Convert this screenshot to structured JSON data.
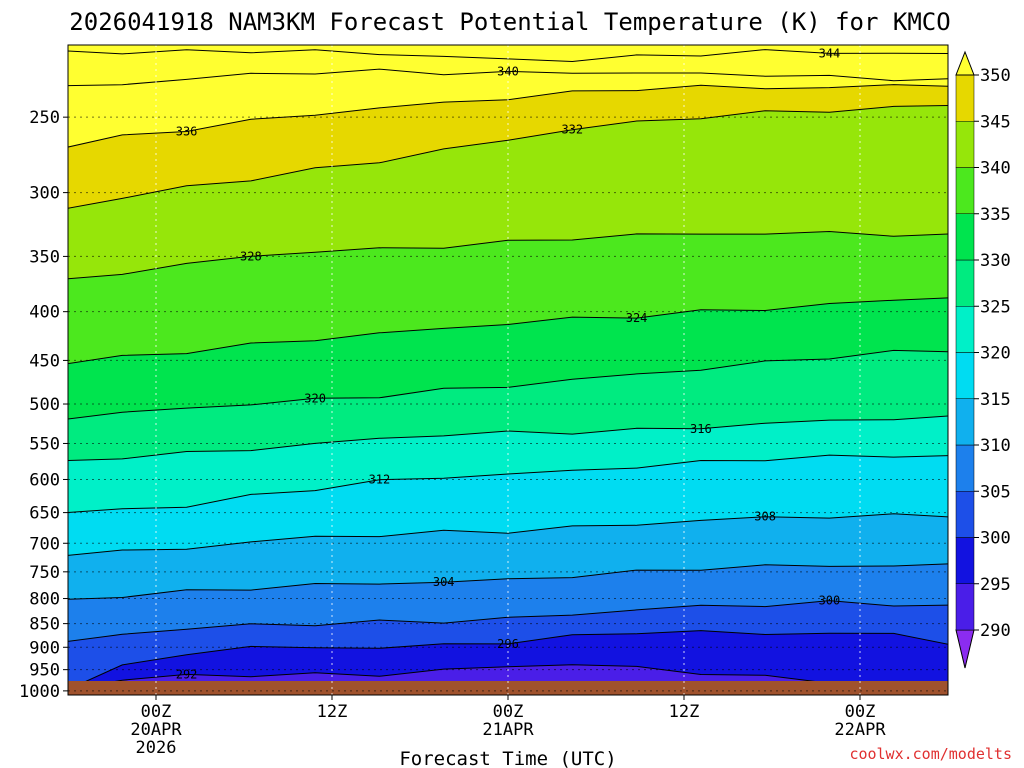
{
  "chart_data": {
    "type": "heatmap",
    "title": "2026041918 NAM3KM Forecast Potential Temperature (K) for KMCO",
    "xlabel": "Forecast Time (UTC)",
    "credit": "coolwx.com/modelts",
    "x_ticks": [
      {
        "hours": 6,
        "lines": [
          "00Z",
          "20APR",
          "2026"
        ]
      },
      {
        "hours": 18,
        "lines": [
          "12Z"
        ]
      },
      {
        "hours": 30,
        "lines": [
          "00Z",
          "21APR"
        ]
      },
      {
        "hours": 42,
        "lines": [
          "12Z"
        ]
      },
      {
        "hours": 54,
        "lines": [
          "00Z",
          "22APR"
        ]
      }
    ],
    "xlim_hours": [
      0,
      60
    ],
    "y_axis": {
      "units": "hPa",
      "scale": "log",
      "ylim": [
        1000,
        210
      ],
      "ticks": [
        "250",
        "300",
        "350",
        "400",
        "450",
        "500",
        "550",
        "600",
        "650",
        "700",
        "750",
        "800",
        "850",
        "900",
        "950",
        "1000"
      ]
    },
    "colorbar": {
      "levels": [
        "290",
        "295",
        "300",
        "305",
        "310",
        "315",
        "320",
        "325",
        "330",
        "335",
        "340",
        "345",
        "350"
      ],
      "colors": [
        "#8b2cf0",
        "#4a1ee8",
        "#1212e0",
        "#1d4fe8",
        "#1d80ec",
        "#10b0ee",
        "#00dcf2",
        "#00f0c8",
        "#00eb80",
        "#00e44e",
        "#4ce81e",
        "#96e60a",
        "#e6d800",
        "#ffff30"
      ]
    },
    "contours": [
      {
        "label": "292",
        "p": [
          1000,
          975,
          968,
          962,
          960,
          958,
          950,
          945,
          940,
          948,
          955,
          965,
          975,
          985,
          1000
        ]
      },
      {
        "label": "296",
        "p": [
          1000,
          945,
          915,
          903,
          900,
          898,
          893,
          888,
          880,
          870,
          868,
          870,
          866,
          872,
          895
        ]
      },
      {
        "label": "300",
        "p": [
          890,
          870,
          862,
          856,
          852,
          846,
          842,
          838,
          832,
          824,
          818,
          812,
          806,
          808,
          815
        ]
      },
      {
        "label": "304",
        "p": [
          802,
          792,
          787,
          782,
          777,
          772,
          767,
          762,
          756,
          752,
          746,
          742,
          738,
          737,
          735
        ]
      },
      {
        "label": "308",
        "p": [
          718,
          712,
          707,
          698,
          692,
          688,
          682,
          678,
          672,
          668,
          664,
          660,
          657,
          654,
          652
        ]
      },
      {
        "label": "312",
        "p": [
          652,
          644,
          637,
          624,
          614,
          605,
          598,
          592,
          586,
          580,
          576,
          572,
          570,
          567,
          565
        ]
      },
      {
        "label": "316",
        "p": [
          578,
          568,
          562,
          556,
          550,
          545,
          540,
          537,
          534,
          531,
          528,
          525,
          522,
          519,
          516
        ]
      },
      {
        "label": "320",
        "p": [
          520,
          512,
          505,
          498,
          494,
          490,
          485,
          480,
          472,
          464,
          458,
          452,
          447,
          443,
          440
        ]
      },
      {
        "label": "324",
        "p": [
          455,
          448,
          441,
          433,
          426,
          421,
          417,
          413,
          408,
          404,
          399,
          396,
          393,
          390,
          387
        ]
      },
      {
        "label": "328",
        "p": [
          372,
          365,
          358,
          350,
          345,
          343,
          341,
          339,
          336,
          333,
          331,
          330,
          330,
          332,
          334
        ]
      },
      {
        "label": "332",
        "p": [
          312,
          304,
          297,
          291,
          284,
          277,
          270,
          264,
          258,
          254,
          250,
          247,
          245,
          244,
          243
        ]
      },
      {
        "label": "336",
        "p": [
          268,
          262,
          258,
          253,
          249,
          244,
          241,
          238,
          236,
          234,
          233,
          233,
          232,
          231,
          231
        ]
      },
      {
        "label": "340",
        "p": [
          232,
          230,
          228,
          226,
          225,
          224,
          224,
          224,
          224,
          225,
          226,
          226,
          227,
          227,
          228
        ]
      },
      {
        "label": "344",
        "p": [
          213,
          213,
          213,
          213,
          214,
          215,
          216,
          217,
          217,
          216,
          215,
          214,
          214,
          214,
          214
        ]
      }
    ]
  }
}
